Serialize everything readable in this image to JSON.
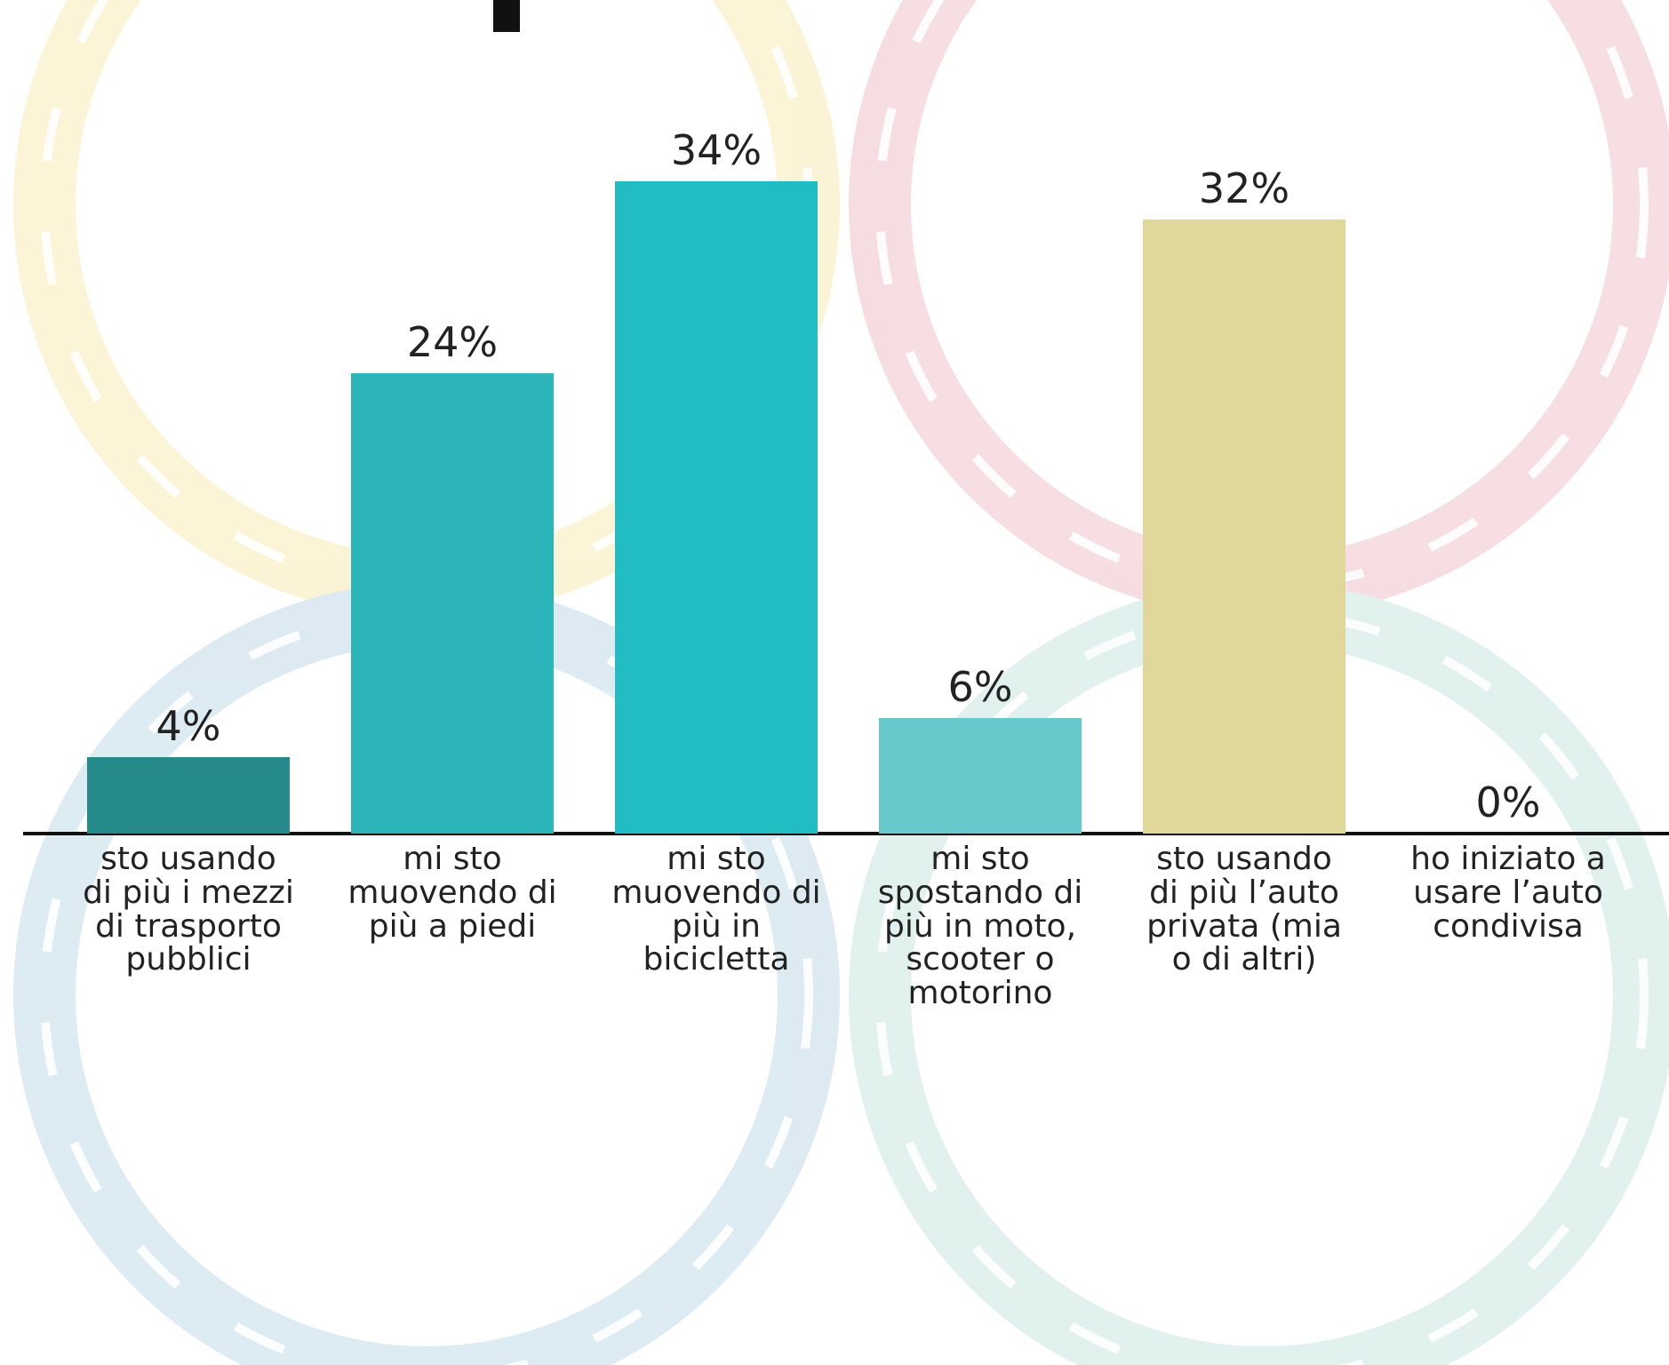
{
  "chart_data": {
    "type": "bar",
    "categories": [
      "sto usando di più i mezzi di trasporto pubblici",
      "mi sto muovendo di più a piedi",
      "mi sto muovendo di più in bicicletta",
      "mi sto spostando di più in moto, scooter o motorino",
      "sto usando di più l’auto privata (mia o di altri)",
      "ho iniziato a usare l’auto condivisa"
    ],
    "values": [
      4,
      24,
      34,
      6,
      32,
      0
    ],
    "value_labels": [
      "4%",
      "24%",
      "34%",
      "6%",
      "32%",
      "0%"
    ],
    "colors": [
      "#268a8a",
      "#2bb5b8",
      "#22bdc2",
      "#68c9cc",
      "#e0d79b",
      "#d9d9d9"
    ]
  }
}
